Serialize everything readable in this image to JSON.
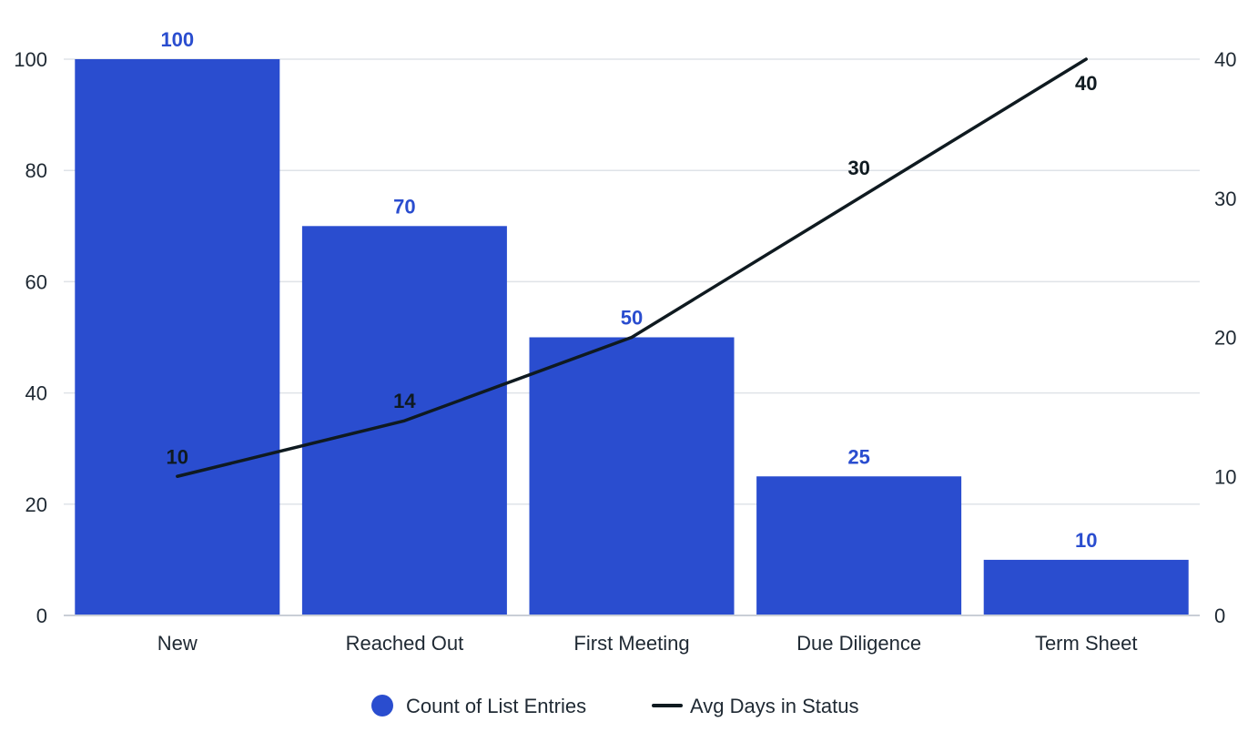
{
  "chart_data": {
    "type": "bar",
    "categories": [
      "New",
      "Reached Out",
      "First Meeting",
      "Due Diligence",
      "Term Sheet"
    ],
    "series": [
      {
        "name": "Count of List Entries",
        "type": "bar",
        "axis": "left",
        "color": "#2a4dcf",
        "values": [
          100,
          70,
          50,
          25,
          10
        ]
      },
      {
        "name": "Avg Days in Status",
        "type": "line",
        "axis": "right",
        "color": "#0f1a20",
        "values": [
          10,
          14,
          20,
          30,
          40
        ]
      }
    ],
    "y_left": {
      "min": 0,
      "max": 100,
      "ticks": [
        0,
        20,
        40,
        60,
        80,
        100
      ]
    },
    "y_right": {
      "min": 0,
      "max": 40,
      "ticks": [
        0,
        10,
        20,
        30,
        40
      ]
    },
    "grid": true,
    "legend_position": "bottom-center",
    "line_labels": [
      "10",
      "14",
      "",
      "30",
      "40"
    ]
  }
}
